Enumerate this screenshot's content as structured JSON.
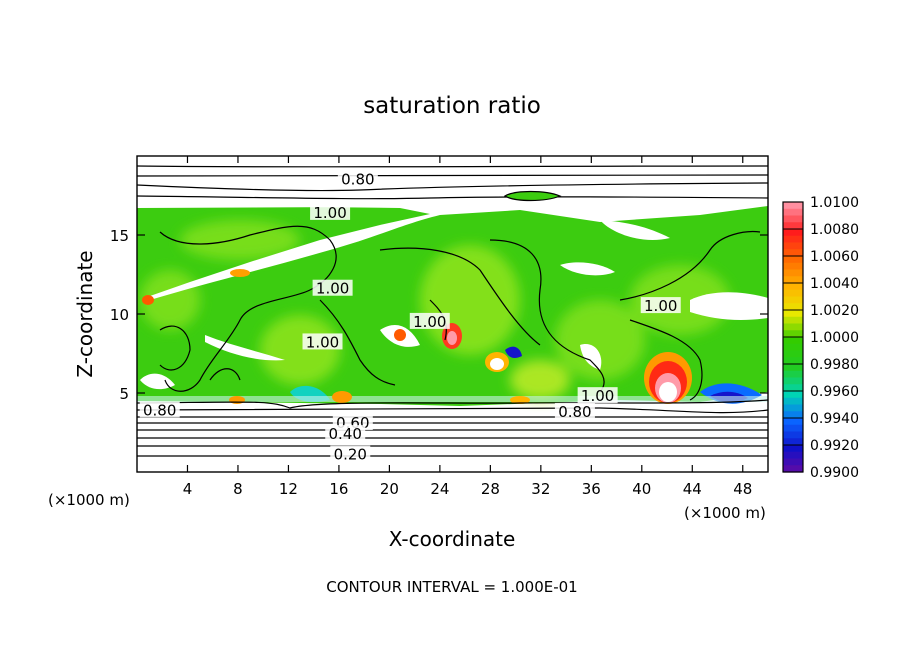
{
  "chart_data": {
    "type": "heatmap",
    "title": "saturation ratio",
    "xlabel": "X-coordinate",
    "ylabel": "Z-coordinate",
    "x_unit_left": "(×1000 m)",
    "x_unit_right": "(×1000 m)",
    "xlim": [
      0,
      50
    ],
    "ylim": [
      0,
      20
    ],
    "x_ticks": [
      4,
      8,
      12,
      16,
      20,
      24,
      28,
      32,
      36,
      40,
      44,
      48
    ],
    "y_ticks": [
      5,
      10,
      15
    ],
    "colorbar": {
      "levels": [
        "1.0100",
        "1.0080",
        "1.0060",
        "1.0040",
        "1.0020",
        "1.0000",
        "0.9980",
        "0.9960",
        "0.9940",
        "0.9920",
        "0.9900"
      ],
      "colors": [
        "#ff8fa0",
        "#ff1c1c",
        "#ff6a00",
        "#ffb300",
        "#e8e800",
        "#33cc00",
        "#22cc22",
        "#00d4b4",
        "#0a64ff",
        "#1010c8",
        "#6a0aa0"
      ]
    },
    "contour_labels": [
      {
        "text": "0.80",
        "x": 17.5,
        "y": 18.5
      },
      {
        "text": "1.00",
        "x": 15.3,
        "y": 16.4
      },
      {
        "text": "1.00",
        "x": 15.5,
        "y": 11.6
      },
      {
        "text": "1.00",
        "x": 14.7,
        "y": 8.2
      },
      {
        "text": "1.00",
        "x": 23.2,
        "y": 9.5
      },
      {
        "text": "1.00",
        "x": 41.5,
        "y": 10.5
      },
      {
        "text": "1.00",
        "x": 36.5,
        "y": 4.8
      },
      {
        "text": "0.80",
        "x": 1.8,
        "y": 3.9
      },
      {
        "text": "0.80",
        "x": 34.7,
        "y": 3.8
      },
      {
        "text": "0.60",
        "x": 17.1,
        "y": 3.1
      },
      {
        "text": "0.40",
        "x": 16.5,
        "y": 2.4
      },
      {
        "text": "0.20",
        "x": 16.9,
        "y": 1.1
      }
    ],
    "footer": "CONTOUR INTERVAL = 1.000E-01"
  }
}
